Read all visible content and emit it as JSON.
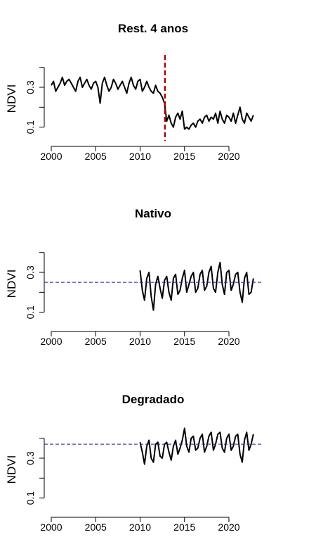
{
  "chart_data": [
    {
      "type": "line",
      "title": "Rest. 4 anos",
      "xlabel": "",
      "ylabel": "NDVI",
      "xlim": [
        2000,
        2023
      ],
      "ylim": [
        0.06,
        0.42
      ],
      "xticks": [
        "2000",
        "2005",
        "2010",
        "2015",
        "2020"
      ],
      "yticks": [
        "0.1",
        "0.3"
      ],
      "vline": {
        "x": 2012.8,
        "color": "#b00000",
        "style": "dashed"
      },
      "hline": null,
      "series": [
        {
          "x": [
            2000.0,
            2000.25,
            2000.5,
            2000.75,
            2001.0,
            2001.25,
            2001.5,
            2001.75,
            2002.0,
            2002.25,
            2002.5,
            2002.75,
            2003.0,
            2003.25,
            2003.5,
            2003.75,
            2004.0,
            2004.25,
            2004.5,
            2004.75,
            2005.0,
            2005.25,
            2005.5,
            2005.75,
            2006.0,
            2006.25,
            2006.5,
            2006.75,
            2007.0,
            2007.25,
            2007.5,
            2007.75,
            2008.0,
            2008.25,
            2008.5,
            2008.75,
            2009.0,
            2009.25,
            2009.5,
            2009.75,
            2010.0,
            2010.25,
            2010.5,
            2010.75,
            2011.0,
            2011.25,
            2011.5,
            2011.75,
            2012.0,
            2012.25,
            2012.5,
            2012.75,
            2013.0,
            2013.25,
            2013.5,
            2013.75,
            2014.0,
            2014.25,
            2014.5,
            2014.75,
            2015.0,
            2015.25,
            2015.5,
            2015.75,
            2016.0,
            2016.25,
            2016.5,
            2016.75,
            2017.0,
            2017.25,
            2017.5,
            2017.75,
            2018.0,
            2018.25,
            2018.5,
            2018.75,
            2019.0,
            2019.25,
            2019.5,
            2019.75,
            2020.0,
            2020.25,
            2020.5,
            2020.75,
            2021.0,
            2021.25,
            2021.5,
            2021.75,
            2022.0,
            2022.25,
            2022.5,
            2022.75
          ],
          "y": [
            0.31,
            0.33,
            0.28,
            0.3,
            0.32,
            0.35,
            0.31,
            0.33,
            0.34,
            0.32,
            0.3,
            0.28,
            0.33,
            0.35,
            0.3,
            0.32,
            0.34,
            0.31,
            0.29,
            0.32,
            0.33,
            0.3,
            0.22,
            0.32,
            0.35,
            0.31,
            0.28,
            0.3,
            0.34,
            0.32,
            0.29,
            0.31,
            0.33,
            0.3,
            0.27,
            0.32,
            0.35,
            0.31,
            0.29,
            0.33,
            0.34,
            0.28,
            0.3,
            0.33,
            0.3,
            0.28,
            0.27,
            0.31,
            0.28,
            0.27,
            0.25,
            0.22,
            0.13,
            0.16,
            0.12,
            0.1,
            0.15,
            0.17,
            0.14,
            0.18,
            0.09,
            0.1,
            0.09,
            0.11,
            0.12,
            0.1,
            0.13,
            0.14,
            0.12,
            0.15,
            0.16,
            0.13,
            0.15,
            0.14,
            0.17,
            0.12,
            0.18,
            0.14,
            0.12,
            0.16,
            0.15,
            0.13,
            0.17,
            0.12,
            0.16,
            0.2,
            0.14,
            0.12,
            0.17,
            0.15,
            0.13,
            0.16
          ]
        }
      ]
    },
    {
      "type": "line",
      "title": "Nativo",
      "xlabel": "",
      "ylabel": "NDVI",
      "xlim": [
        2000,
        2023
      ],
      "ylim": [
        0.06,
        0.42
      ],
      "xticks": [
        "2000",
        "2005",
        "2010",
        "2015",
        "2020"
      ],
      "yticks": [
        "0.1",
        "0.3"
      ],
      "vline": null,
      "hline": {
        "y": 0.25,
        "color": "#1a1aa8",
        "style": "dashed"
      },
      "series": [
        {
          "x": [
            2010.0,
            2010.25,
            2010.5,
            2010.75,
            2011.0,
            2011.25,
            2011.5,
            2011.75,
            2012.0,
            2012.25,
            2012.5,
            2012.75,
            2013.0,
            2013.25,
            2013.5,
            2013.75,
            2014.0,
            2014.25,
            2014.5,
            2014.75,
            2015.0,
            2015.25,
            2015.5,
            2015.75,
            2016.0,
            2016.25,
            2016.5,
            2016.75,
            2017.0,
            2017.25,
            2017.5,
            2017.75,
            2018.0,
            2018.25,
            2018.5,
            2018.75,
            2019.0,
            2019.25,
            2019.5,
            2019.75,
            2020.0,
            2020.25,
            2020.5,
            2020.75,
            2021.0,
            2021.25,
            2021.5,
            2021.75,
            2022.0,
            2022.25,
            2022.5,
            2022.75
          ],
          "y": [
            0.31,
            0.21,
            0.16,
            0.27,
            0.3,
            0.18,
            0.11,
            0.24,
            0.28,
            0.22,
            0.17,
            0.26,
            0.28,
            0.2,
            0.16,
            0.27,
            0.29,
            0.19,
            0.21,
            0.27,
            0.31,
            0.2,
            0.24,
            0.28,
            0.3,
            0.2,
            0.22,
            0.29,
            0.31,
            0.21,
            0.23,
            0.3,
            0.33,
            0.22,
            0.2,
            0.3,
            0.35,
            0.24,
            0.19,
            0.3,
            0.31,
            0.21,
            0.24,
            0.29,
            0.3,
            0.2,
            0.15,
            0.27,
            0.3,
            0.19,
            0.2,
            0.27
          ]
        }
      ]
    },
    {
      "type": "line",
      "title": "Degradado",
      "xlabel": "",
      "ylabel": "NDVI",
      "xlim": [
        2000,
        2023
      ],
      "ylim": [
        0.06,
        0.42
      ],
      "xticks": [
        "2000",
        "2005",
        "2010",
        "2015",
        "2020"
      ],
      "yticks": [
        "0.1",
        "0.3"
      ],
      "vline": null,
      "hline": {
        "y": 0.37,
        "color": "#1a1aa8",
        "style": "dashed"
      },
      "series": [
        {
          "x": [
            2010.0,
            2010.25,
            2010.5,
            2010.75,
            2011.0,
            2011.25,
            2011.5,
            2011.75,
            2012.0,
            2012.25,
            2012.5,
            2012.75,
            2013.0,
            2013.25,
            2013.5,
            2013.75,
            2014.0,
            2014.25,
            2014.5,
            2014.75,
            2015.0,
            2015.25,
            2015.5,
            2015.75,
            2016.0,
            2016.25,
            2016.5,
            2016.75,
            2017.0,
            2017.25,
            2017.5,
            2017.75,
            2018.0,
            2018.25,
            2018.5,
            2018.75,
            2019.0,
            2019.25,
            2019.5,
            2019.75,
            2020.0,
            2020.25,
            2020.5,
            2020.75,
            2021.0,
            2021.25,
            2021.5,
            2021.75,
            2022.0,
            2022.25,
            2022.5,
            2022.75
          ],
          "y": [
            0.38,
            0.33,
            0.27,
            0.36,
            0.39,
            0.3,
            0.28,
            0.37,
            0.38,
            0.31,
            0.3,
            0.37,
            0.38,
            0.33,
            0.29,
            0.36,
            0.39,
            0.32,
            0.35,
            0.39,
            0.45,
            0.36,
            0.33,
            0.4,
            0.41,
            0.34,
            0.35,
            0.4,
            0.42,
            0.33,
            0.36,
            0.41,
            0.43,
            0.34,
            0.37,
            0.42,
            0.43,
            0.35,
            0.33,
            0.4,
            0.42,
            0.34,
            0.36,
            0.41,
            0.42,
            0.32,
            0.28,
            0.39,
            0.43,
            0.34,
            0.37,
            0.42
          ]
        }
      ]
    }
  ]
}
